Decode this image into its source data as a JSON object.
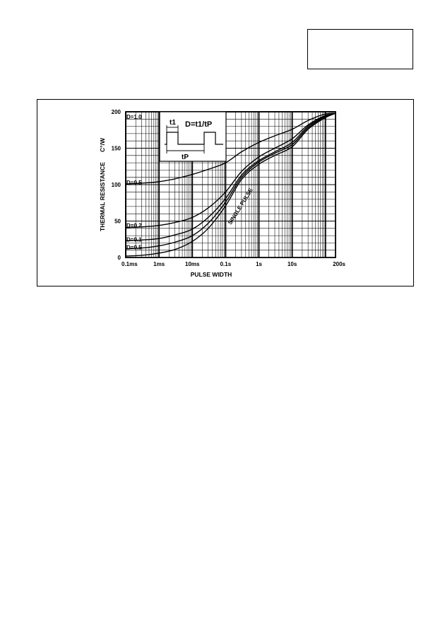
{
  "chart_data": {
    "type": "line",
    "xlabel": "PULSE WIDTH",
    "ylabel": "THERMAL RESISTANCE",
    "ylabel_unit": "C°/W",
    "x_scale": "log",
    "x_ticks": [
      {
        "value": 0.0001,
        "label": "0.1ms"
      },
      {
        "value": 0.001,
        "label": "1ms"
      },
      {
        "value": 0.01,
        "label": "10ms"
      },
      {
        "value": 0.1,
        "label": "0.1s"
      },
      {
        "value": 1,
        "label": "1s"
      },
      {
        "value": 10,
        "label": "10s"
      },
      {
        "value": 200,
        "label": "200s"
      }
    ],
    "y_ticks": [
      0,
      50,
      100,
      150,
      200
    ],
    "xlim": [
      0.0001,
      200
    ],
    "ylim": [
      0,
      200
    ],
    "grid": true,
    "inset": {
      "formula": "D=t1/tP",
      "t1_label": "t1",
      "tp_label": "tP"
    },
    "series_annotation": "SINGLE PULSE",
    "series": [
      {
        "name": "D=1.0",
        "x": [
          0.0001,
          200
        ],
        "values": [
          200,
          200
        ]
      },
      {
        "name": "D=0.5",
        "x": [
          0.0001,
          0.0003,
          0.001,
          0.003,
          0.01,
          0.03,
          0.1,
          0.3,
          1,
          3,
          10,
          30,
          100,
          200
        ],
        "values": [
          101,
          102,
          104,
          108,
          114,
          121,
          130,
          145,
          158,
          167,
          176,
          188,
          197,
          198
        ]
      },
      {
        "name": "D=0.2",
        "x": [
          0.0001,
          0.0003,
          0.001,
          0.003,
          0.01,
          0.03,
          0.1,
          0.3,
          1,
          3,
          10,
          30,
          100,
          200
        ],
        "values": [
          41,
          42,
          44,
          48,
          55,
          68,
          90,
          118,
          138,
          150,
          163,
          182,
          195,
          198
        ]
      },
      {
        "name": "D=0.1",
        "x": [
          0.0001,
          0.0003,
          0.001,
          0.003,
          0.01,
          0.03,
          0.1,
          0.3,
          1,
          3,
          10,
          30,
          100,
          200
        ],
        "values": [
          23,
          24,
          26,
          31,
          39,
          55,
          81,
          113,
          133,
          145,
          158,
          180,
          194,
          198
        ]
      },
      {
        "name": "D=0.5 (lower)",
        "x": [
          0.0001,
          0.0003,
          0.001,
          0.003,
          0.01,
          0.03,
          0.1,
          0.3,
          1,
          3,
          10,
          30,
          100,
          200
        ],
        "values": [
          12,
          13,
          16,
          21,
          30,
          47,
          76,
          110,
          131,
          143,
          155,
          178,
          193,
          198
        ]
      },
      {
        "name": "SINGLE PULSE",
        "x": [
          0.0001,
          0.0003,
          0.001,
          0.003,
          0.01,
          0.03,
          0.1,
          0.3,
          1,
          3,
          10,
          30,
          100,
          200
        ],
        "values": [
          2,
          3,
          6,
          11,
          22,
          40,
          71,
          107,
          128,
          140,
          152,
          176,
          192,
          198
        ]
      }
    ],
    "curve_labels": [
      {
        "text": "D=1.0",
        "y": 193
      },
      {
        "text": "D=0.5",
        "y": 103
      },
      {
        "text": "D=0.2",
        "y": 44
      },
      {
        "text": "D=0.1",
        "y": 25
      },
      {
        "text": "D=0.5",
        "y": 14
      }
    ]
  }
}
